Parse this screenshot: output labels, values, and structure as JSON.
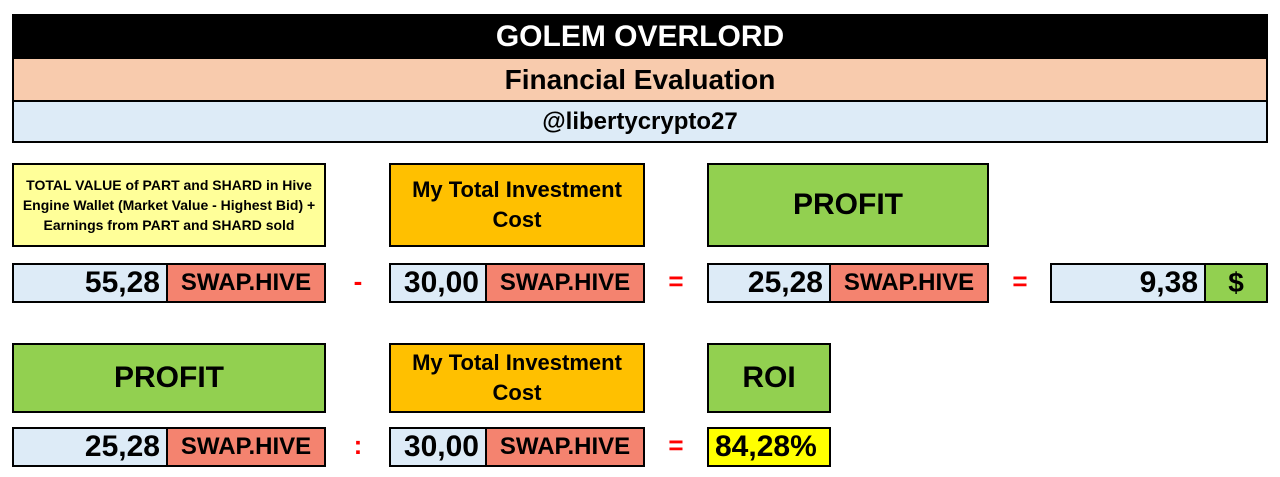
{
  "header": {
    "title": "GOLEM OVERLORD",
    "subtitle": "Financial Evaluation",
    "user": "@libertycrypto27"
  },
  "labels": {
    "total_value": "TOTAL VALUE of PART and SHARD in Hive Engine Wallet (Market Value - Highest Bid) + Earnings from PART and SHARD sold",
    "investment_cost": "My Total Investment Cost",
    "profit": "PROFIT",
    "roi": "ROI"
  },
  "row1": {
    "total_value": "55,28",
    "op_minus": "-",
    "investment": "30,00",
    "op_equals": "=",
    "profit": "25,28",
    "op_equals2": "=",
    "profit_usd": "9,38",
    "usd_symbol": "$"
  },
  "row2": {
    "profit": "25,28",
    "op_divide": ":",
    "investment": "30,00",
    "op_equals": "=",
    "roi": "84,28%"
  },
  "unit": "SWAP.HIVE",
  "colors": {
    "title_bg": "#000000",
    "subtitle_bg": "#f8cbad",
    "user_bg": "#ddebf7",
    "yellow_label": "#ffff99",
    "orange_label": "#ffc000",
    "green": "#92d050",
    "unit_red": "#f4836f",
    "roi_yellow": "#ffff00",
    "operator_red": "#ff0000"
  }
}
